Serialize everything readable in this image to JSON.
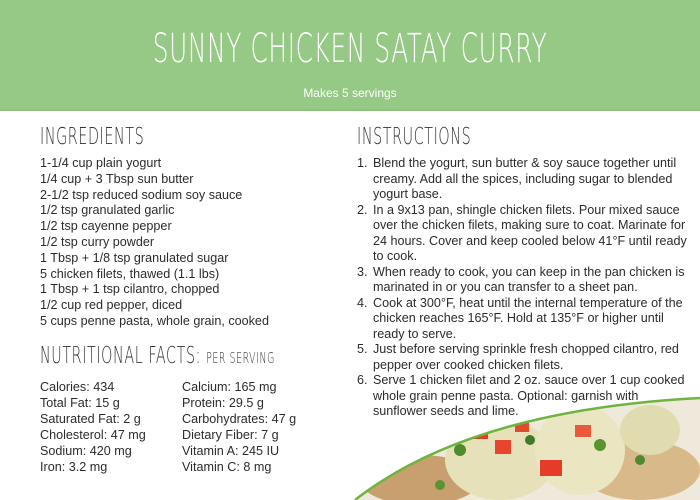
{
  "header": {
    "title": "SUNNY CHICKEN SATAY CURRY",
    "subtitle": "Makes 5 servings",
    "color": "#97c986"
  },
  "ingredients": {
    "heading": "INGREDIENTS",
    "items": [
      "1-1/4 cup plain yogurt",
      "1/4 cup + 3 Tbsp sun butter",
      "2-1/2 tsp reduced sodium soy sauce",
      "1/2 tsp granulated garlic",
      "1/2 tsp cayenne pepper",
      "1/2 tsp curry powder",
      "1 Tbsp + 1/8 tsp granulated sugar",
      "5 chicken filets, thawed (1.1 lbs)",
      "1 Tbsp + 1 tsp cilantro, chopped",
      "1/2 cup red pepper, diced",
      "5 cups penne pasta, whole grain, cooked"
    ]
  },
  "nutrition": {
    "heading": "NUTRITIONAL FACTS:",
    "subheading": "PER SERVING",
    "col1": [
      "Calories: 434",
      "Total Fat: 15 g",
      "Saturated Fat: 2 g",
      "Cholesterol:  47 mg",
      "Sodium: 420 mg",
      "Iron: 3.2 mg"
    ],
    "col2": [
      "Calcium: 165 mg",
      "Protein: 29.5 g",
      "Carbohydrates: 47 g",
      "Dietary Fiber: 7 g",
      "Vitamin A: 245 IU",
      "Vitamin C: 8 mg"
    ]
  },
  "instructions": {
    "heading": "INSTRUCTIONS",
    "steps": [
      {
        "n": "1.",
        "text": "Blend the yogurt, sun butter & soy sauce together until creamy. Add all the spices, including sugar to blended yogurt base."
      },
      {
        "n": "2.",
        "text": "In a 9x13 pan, shingle chicken filets. Pour mixed sauce over the chicken filets, making sure to coat. Marinate for 24 hours. Cover and keep cooled below 41°F until ready to cook."
      },
      {
        "n": "3.",
        "text": "When ready to cook, you can keep in the pan chicken is marinated in or you can transfer to a sheet pan."
      },
      {
        "n": "4.",
        "text": "Cook at 300°F, heat until the internal temperature of the chicken reaches 165°F. Hold at 135°F or higher until ready to serve."
      },
      {
        "n": "5.",
        "text": "Just before serving sprinkle fresh chopped cilantro, red pepper over cooked chicken filets."
      },
      {
        "n": "6.",
        "text": "Serve 1 chicken filet and 2 oz. sauce over 1 cup cooked whole grain penne pasta. Optional: garnish with sunflower seeds and lime."
      }
    ]
  }
}
